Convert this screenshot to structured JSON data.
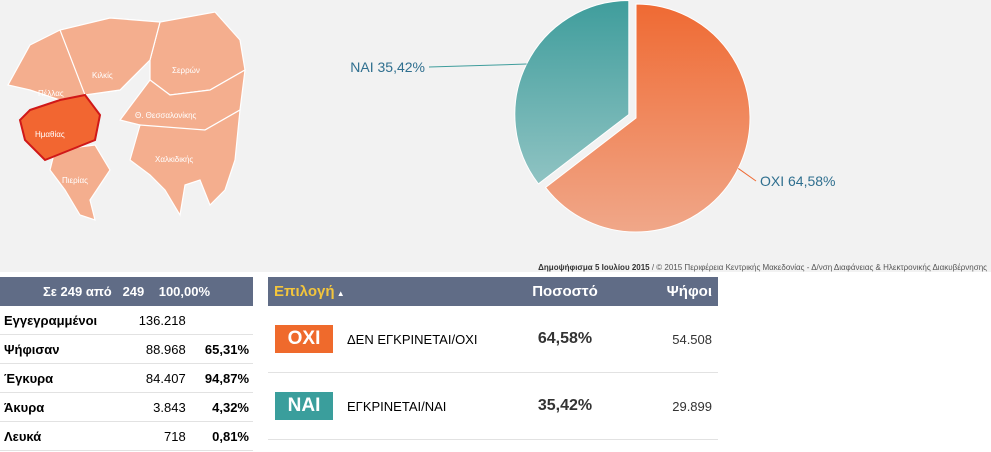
{
  "chart_data": {
    "type": "pie",
    "values": [
      35.42,
      64.58
    ],
    "value_labels": [
      "ΝΑΙ 35,42%",
      "ΟΧΙ 64,58%"
    ],
    "colors": [
      "#3f9d9c",
      "#ef6a33"
    ]
  },
  "map": {
    "labels": [
      "Κιλκίς",
      "Σερρών",
      "Πέλλας",
      "Ημαθίας",
      "Θ. Θεσσαλονίκης",
      "Χαλκιδικής",
      "Πιερίας"
    ]
  },
  "caption": {
    "bold": "Δημοψήφισμα 5 Ιουλίου 2015",
    "text": " / © 2015 Περιφέρεια Κεντρικής Μακεδονίας - Δ/νση Διαφάνειας & Ηλεκτρονικής Διακυβέρνησης"
  },
  "summary": {
    "header": [
      "Σε 249 από",
      "249",
      "100,00%"
    ],
    "rows": [
      [
        "Εγγεγραμμένοι",
        "136.218"
      ],
      [
        "Ψήφισαν",
        "88.968",
        "65,31%"
      ],
      [
        "Έγκυρα",
        "84.407",
        "94,87%"
      ],
      [
        "Άκυρα",
        "3.843",
        "4,32%"
      ],
      [
        "Λευκά",
        "718",
        "0,81%"
      ]
    ]
  },
  "results": {
    "header": [
      "Επιλογή",
      "Ποσοστό",
      "Ψήφοι"
    ],
    "rows": [
      {
        "badge": "ΟΧΙ",
        "color": "#ef6a2c",
        "label": "ΔΕΝ ΕΓΚΡΙΝΕΤΑΙ/ΟΧΙ",
        "percent": "64,58%",
        "votes": "54.508"
      },
      {
        "badge": "ΝΑΙ",
        "color": "#3a9e9c",
        "label": "ΕΓΚΡΙΝΕΤΑΙ/ΝΑΙ",
        "percent": "35,42%",
        "votes": "29.899"
      }
    ]
  }
}
